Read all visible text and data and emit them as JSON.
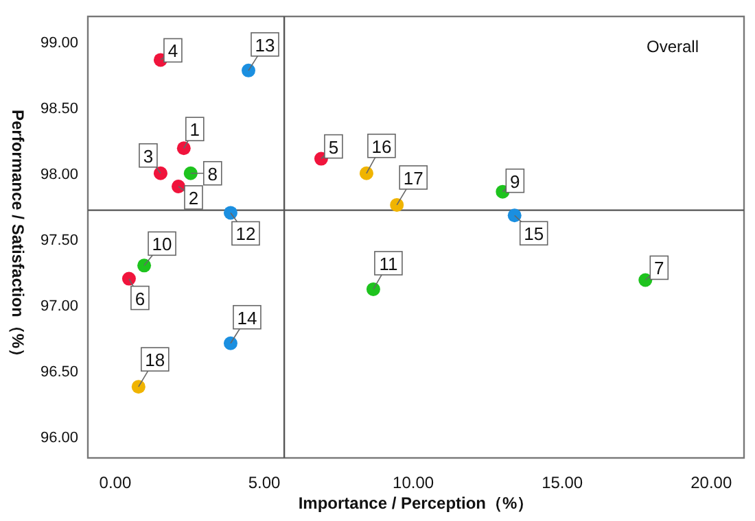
{
  "chart_data": {
    "type": "scatter",
    "xlabel": "Importance / Perception（%）",
    "ylabel": "Performance / Satisfaction（%）",
    "series": [
      {
        "color": "#f0143c",
        "x": [
          2.3,
          2.12,
          1.52,
          1.52,
          6.91,
          0.46
        ],
        "values": [
          98.19,
          97.9,
          98.0,
          98.86,
          98.11,
          97.2
        ]
      },
      {
        "color": "#1ec31e",
        "x": [
          17.79,
          2.53,
          13.0,
          0.97,
          8.66
        ],
        "values": [
          97.19,
          98.0,
          97.86,
          97.3,
          97.12
        ]
      },
      {
        "color": "#1b8fe0",
        "x": [
          3.87,
          4.47,
          3.87,
          13.4
        ],
        "values": [
          97.7,
          98.78,
          96.71,
          97.68
        ]
      },
      {
        "color": "#f0b400",
        "x": [
          8.43,
          9.45,
          0.78
        ],
        "values": [
          98.0,
          97.76,
          96.38
        ]
      }
    ],
    "xlim": [
      -0.92,
      21.1
    ],
    "ylim": [
      95.84,
      99.19
    ],
    "xticks": [
      {
        "value": 0,
        "label": "0.00"
      },
      {
        "value": 5,
        "label": "5.00"
      },
      {
        "value": 10,
        "label": "10.00"
      },
      {
        "value": 15,
        "label": "15.00"
      },
      {
        "value": 20,
        "label": "20.00"
      }
    ],
    "yticks": [
      {
        "value": 96,
        "label": "96.00"
      },
      {
        "value": 96.5,
        "label": "96.50"
      },
      {
        "value": 97,
        "label": "97.00"
      },
      {
        "value": 97.5,
        "label": "97.50"
      },
      {
        "value": 98,
        "label": "98.00"
      },
      {
        "value": 98.5,
        "label": "98.50"
      },
      {
        "value": 99,
        "label": "99.00"
      }
    ],
    "ref_lines": [
      {
        "axis": "x",
        "value": 5.67,
        "color": "#555555"
      },
      {
        "axis": "y",
        "value": 97.72,
        "color": "#555555"
      }
    ],
    "marker": "circle",
    "grid": false,
    "annotations": [
      {
        "text": "1",
        "x": 2.3,
        "y": 98.19
      },
      {
        "text": "2",
        "x": 2.12,
        "y": 97.9
      },
      {
        "text": "3",
        "x": 1.52,
        "y": 98.0
      },
      {
        "text": "4",
        "x": 1.52,
        "y": 98.86
      },
      {
        "text": "5",
        "x": 6.91,
        "y": 98.11
      },
      {
        "text": "6",
        "x": 0.46,
        "y": 97.2
      },
      {
        "text": "7",
        "x": 17.79,
        "y": 97.19
      },
      {
        "text": "8",
        "x": 2.53,
        "y": 98.0
      },
      {
        "text": "9",
        "x": 13.0,
        "y": 97.86
      },
      {
        "text": "10",
        "x": 0.97,
        "y": 97.3
      },
      {
        "text": "11",
        "x": 8.66,
        "y": 97.12
      },
      {
        "text": "12",
        "x": 3.87,
        "y": 97.7
      },
      {
        "text": "13",
        "x": 4.47,
        "y": 98.78
      },
      {
        "text": "14",
        "x": 3.87,
        "y": 96.71
      },
      {
        "text": "15",
        "x": 13.4,
        "y": 97.68
      },
      {
        "text": "16",
        "x": 8.43,
        "y": 98.0
      },
      {
        "text": "17",
        "x": 9.45,
        "y": 97.76
      },
      {
        "text": "18",
        "x": 0.78,
        "y": 96.38
      },
      "Overall"
    ]
  }
}
